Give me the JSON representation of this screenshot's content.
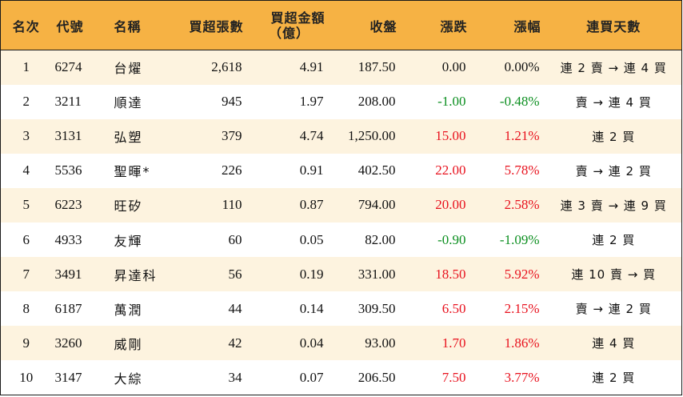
{
  "headers": {
    "rank": "名次",
    "code": "代號",
    "name": "名稱",
    "net_buy_lots": "買超張數",
    "net_buy_amount_line1": "買超金額",
    "net_buy_amount_line2": "（億）",
    "close": "收盤",
    "change": "漲跌",
    "change_pct": "漲幅",
    "streak": "連買天數"
  },
  "colors": {
    "header_bg": "#f6b244",
    "stripe_bg": "#fdf3df",
    "up": "#e8121e",
    "down": "#0c8f20"
  },
  "rows": [
    {
      "rank": "1",
      "code": "6274",
      "name": "台燿",
      "lots": "2,618",
      "amount": "4.91",
      "close": "187.50",
      "change": "0.00",
      "pct": "0.00%",
      "dir": "flat",
      "streak": "連 2 賣 → 連 4 買"
    },
    {
      "rank": "2",
      "code": "3211",
      "name": "順達",
      "lots": "945",
      "amount": "1.97",
      "close": "208.00",
      "change": "-1.00",
      "pct": "-0.48%",
      "dir": "down",
      "streak": "賣 → 連 4 買"
    },
    {
      "rank": "3",
      "code": "3131",
      "name": "弘塑",
      "lots": "379",
      "amount": "4.74",
      "close": "1,250.00",
      "change": "15.00",
      "pct": "1.21%",
      "dir": "up",
      "streak": "連 2 買"
    },
    {
      "rank": "4",
      "code": "5536",
      "name": "聖暉*",
      "lots": "226",
      "amount": "0.91",
      "close": "402.50",
      "change": "22.00",
      "pct": "5.78%",
      "dir": "up",
      "streak": "賣 → 連 2 買"
    },
    {
      "rank": "5",
      "code": "6223",
      "name": "旺矽",
      "lots": "110",
      "amount": "0.87",
      "close": "794.00",
      "change": "20.00",
      "pct": "2.58%",
      "dir": "up",
      "streak": "連 3 賣 → 連 9 買"
    },
    {
      "rank": "6",
      "code": "4933",
      "name": "友輝",
      "lots": "60",
      "amount": "0.05",
      "close": "82.00",
      "change": "-0.90",
      "pct": "-1.09%",
      "dir": "down",
      "streak": "連 2 買"
    },
    {
      "rank": "7",
      "code": "3491",
      "name": "昇達科",
      "lots": "56",
      "amount": "0.19",
      "close": "331.00",
      "change": "18.50",
      "pct": "5.92%",
      "dir": "up",
      "streak": "連 10 賣 → 買"
    },
    {
      "rank": "8",
      "code": "6187",
      "name": "萬潤",
      "lots": "44",
      "amount": "0.14",
      "close": "309.50",
      "change": "6.50",
      "pct": "2.15%",
      "dir": "up",
      "streak": "賣 → 連 2 買"
    },
    {
      "rank": "9",
      "code": "3260",
      "name": "威剛",
      "lots": "42",
      "amount": "0.04",
      "close": "93.00",
      "change": "1.70",
      "pct": "1.86%",
      "dir": "up",
      "streak": "連 4 買"
    },
    {
      "rank": "10",
      "code": "3147",
      "name": "大綜",
      "lots": "34",
      "amount": "0.07",
      "close": "206.50",
      "change": "7.50",
      "pct": "3.77%",
      "dir": "up",
      "streak": "連 2 買"
    }
  ]
}
